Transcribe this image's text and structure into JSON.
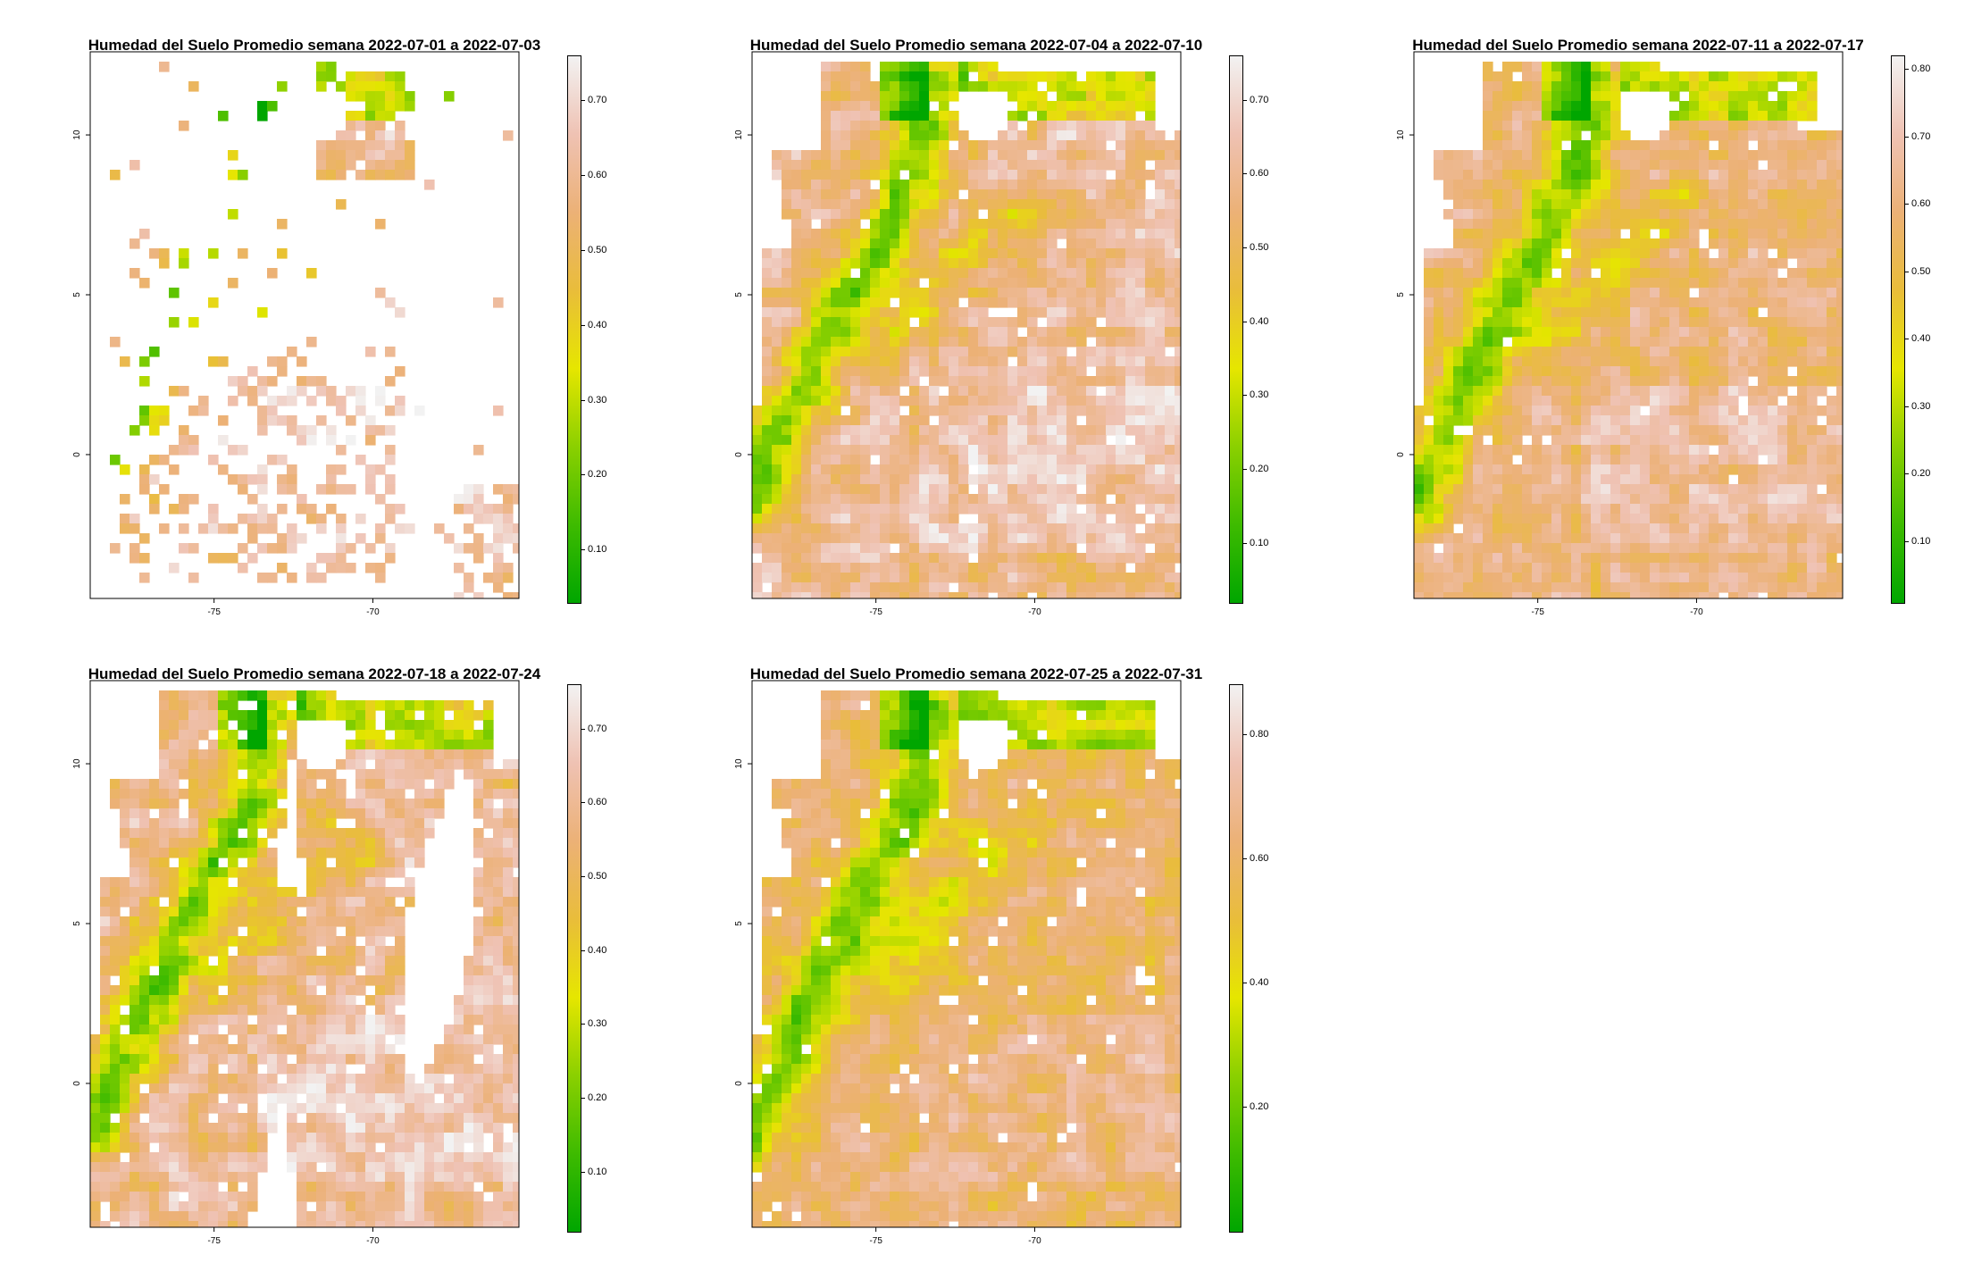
{
  "figure": {
    "panels": [
      {
        "title": "Humedad del Suelo Promedio semana 2022-07-01 a 2022-07-03",
        "x_ticks": [
          "-75",
          "-70"
        ],
        "y_ticks": [
          "10",
          "5",
          "0"
        ],
        "legend_ticks": [
          "0.70",
          "0.60",
          "0.50",
          "0.40",
          "0.30",
          "0.20",
          "0.10"
        ],
        "legend_range": [
          0.03,
          0.76
        ],
        "coverage": "sparse"
      },
      {
        "title": "Humedad del Suelo Promedio semana 2022-07-04 a 2022-07-10",
        "x_ticks": [
          "-75",
          "-70"
        ],
        "y_ticks": [
          "10",
          "5",
          "0"
        ],
        "legend_ticks": [
          "0.70",
          "0.60",
          "0.50",
          "0.40",
          "0.30",
          "0.20",
          "0.10"
        ],
        "legend_range": [
          0.02,
          0.76
        ],
        "coverage": "full"
      },
      {
        "title": "Humedad del Suelo Promedio semana 2022-07-11 a 2022-07-17",
        "x_ticks": [
          "-75",
          "-70"
        ],
        "y_ticks": [
          "10",
          "5",
          "0"
        ],
        "legend_ticks": [
          "0.80",
          "0.70",
          "0.60",
          "0.50",
          "0.40",
          "0.30",
          "0.20",
          "0.10"
        ],
        "legend_range": [
          0.01,
          0.82
        ],
        "coverage": "full"
      },
      {
        "title": "Humedad del Suelo Promedio semana 2022-07-18 a 2022-07-24",
        "x_ticks": [
          "-75",
          "-70"
        ],
        "y_ticks": [
          "10",
          "5",
          "0"
        ],
        "legend_ticks": [
          "0.70",
          "0.60",
          "0.50",
          "0.40",
          "0.30",
          "0.20",
          "0.10"
        ],
        "legend_range": [
          0.02,
          0.76
        ],
        "coverage": "gaps"
      },
      {
        "title": "Humedad del Suelo Promedio semana 2022-07-25 a 2022-07-31",
        "x_ticks": [
          "-75",
          "-70"
        ],
        "y_ticks": [
          "10",
          "5",
          "0"
        ],
        "legend_ticks": [
          "0.80",
          "0.60",
          "0.40",
          "0.20"
        ],
        "legend_range": [
          0.0,
          0.88
        ],
        "coverage": "full"
      }
    ],
    "axis_x_range": [
      -78.9,
      -65.4
    ],
    "axis_y_range": [
      -4.5,
      12.6
    ],
    "color_scale": [
      "#00A600",
      "#3EBB00",
      "#8BD000",
      "#E6E600",
      "#E9BD3A",
      "#ECB176",
      "#EFC2B3",
      "#F2F2F2"
    ],
    "no_data_color": "#ffffff"
  }
}
